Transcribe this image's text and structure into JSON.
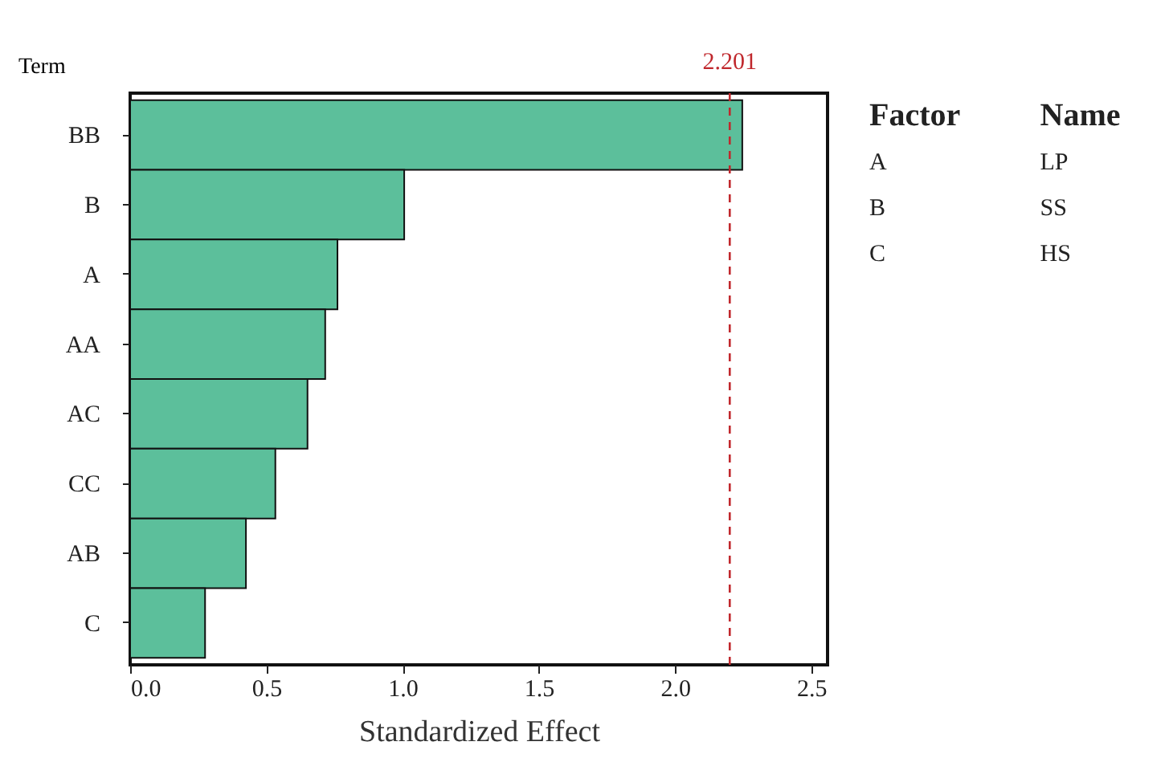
{
  "chart_data": {
    "type": "bar",
    "orientation": "horizontal",
    "xlabel": "Standardized Effect",
    "ylabel": "Term",
    "categories": [
      "BB",
      "B",
      "A",
      "AA",
      "AC",
      "CC",
      "AB",
      "C"
    ],
    "values": [
      2.247,
      1.006,
      0.761,
      0.716,
      0.651,
      0.533,
      0.425,
      0.275
    ],
    "color": "#5cbf9b",
    "xlim": [
      0,
      2.56
    ],
    "xticks": [
      {
        "value": 0,
        "label": "0.0"
      },
      {
        "value": 0.5,
        "label": "0.5"
      },
      {
        "value": 1,
        "label": "1.0"
      },
      {
        "value": 1.5,
        "label": "1.5"
      },
      {
        "value": 2,
        "label": "2.0"
      },
      {
        "value": 2.5,
        "label": "2.5"
      }
    ],
    "ref_lines": [
      {
        "axis": "x",
        "value": 2.201,
        "label": "2.201",
        "color": "#c0282d",
        "line_style": "dashed"
      }
    ],
    "annotations": [
      "Factor",
      "Name",
      "A",
      "LP",
      "B",
      "SS",
      "C",
      "HS"
    ],
    "grid": false
  }
}
